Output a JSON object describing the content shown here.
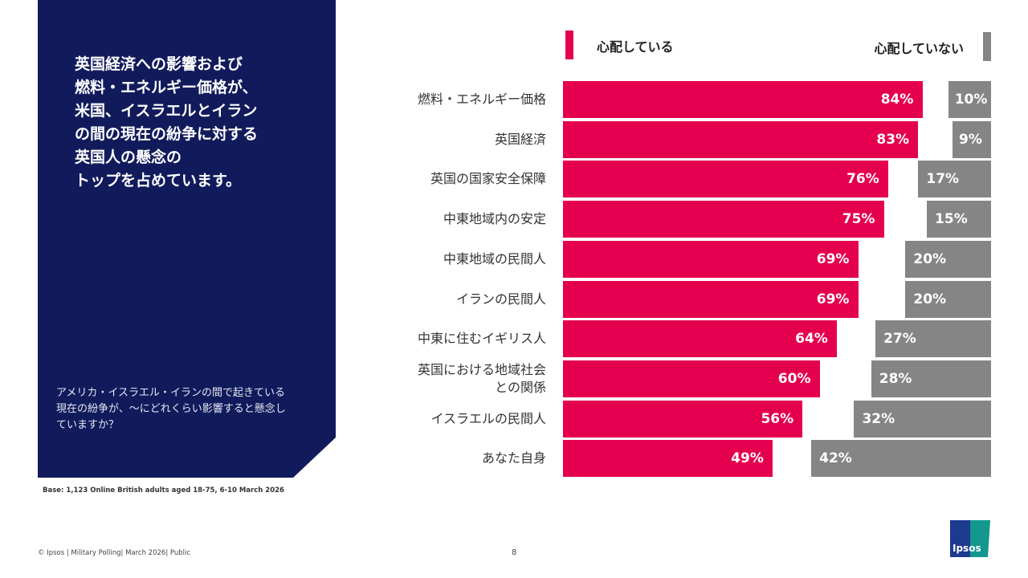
{
  "panel": {
    "title": "英国経済への影響および\n燃料・エネルギー価格が、\n米国、イスラエルとイラン\nの間の現在の紛争に対する\n英国人の懸念の\nトップを占めています。",
    "question": "アメリカ・イスラエル・イランの間で起きている現在の紛争が、〜にどれくらい影響すると懸念していますか？"
  },
  "chart_data": {
    "type": "bar",
    "orientation": "horizontal",
    "stacked_diverging": true,
    "categories": [
      "燃料・エネルギー価格",
      "英国経済",
      "英国の国家安全保障",
      "中東地域内の安定",
      "中東地域の民間人",
      "イランの民間人",
      "中東に住むイギリス人",
      "英国における地域社会\nとの関係",
      "イスラエルの民間人",
      "あなた自身"
    ],
    "series": [
      {
        "name": "心配している",
        "color": "#e4004f",
        "values": [
          84,
          83,
          76,
          75,
          69,
          69,
          64,
          60,
          56,
          49
        ]
      },
      {
        "name": "心配していない",
        "color": "#858585",
        "values": [
          10,
          9,
          17,
          15,
          20,
          20,
          27,
          28,
          32,
          42
        ]
      }
    ],
    "unit": "%",
    "xlim": [
      0,
      100
    ]
  },
  "base": "Base: 1,123 Online British adults aged 18-75, 6-10 March 2026",
  "footer": "© Ipsos | Military Polling| March 2026| Public",
  "page_number": "8",
  "logo": "Ipsos"
}
